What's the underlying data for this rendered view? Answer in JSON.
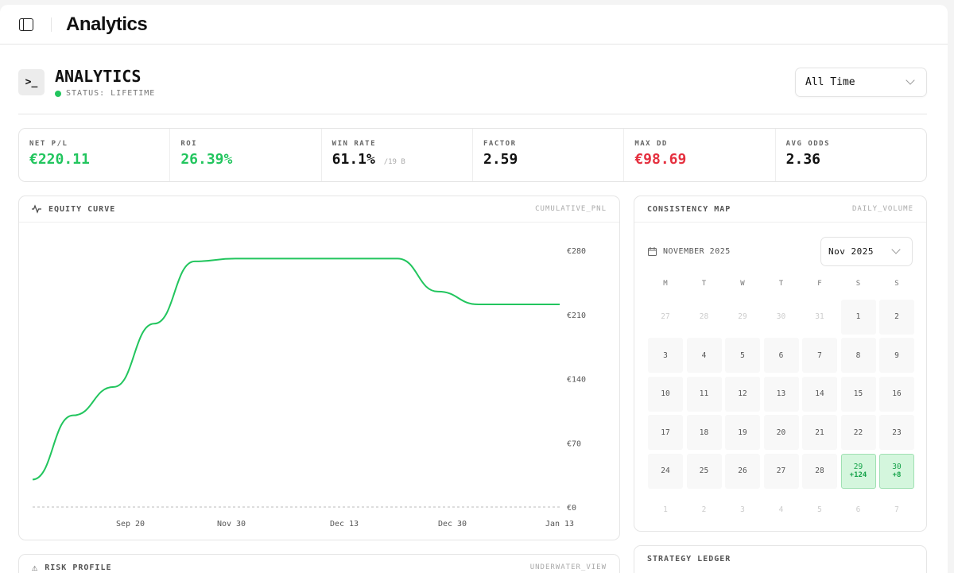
{
  "topbar": {
    "title": "Analytics"
  },
  "header": {
    "title": "ANALYTICS",
    "status": "STATUS: LIFETIME",
    "range_select": "All Time"
  },
  "stats": [
    {
      "label": "NET P/L",
      "value": "€220.11",
      "tone": "green"
    },
    {
      "label": "ROI",
      "value": "26.39%",
      "tone": "green"
    },
    {
      "label": "WIN RATE",
      "value": "61.1%",
      "sub": "/19 B",
      "tone": ""
    },
    {
      "label": "FACTOR",
      "value": "2.59",
      "tone": ""
    },
    {
      "label": "MAX DD",
      "value": "€98.69",
      "tone": "red"
    },
    {
      "label": "AVG ODDS",
      "value": "2.36",
      "tone": ""
    }
  ],
  "equity": {
    "title": "EQUITY CURVE",
    "tag": "CUMULATIVE_PNL"
  },
  "chart_data": {
    "type": "line",
    "color": "#22c55e",
    "y_ticks": [
      "€280",
      "€210",
      "€140",
      "€70",
      "€0"
    ],
    "ylim": [
      0,
      280
    ],
    "x_ticks": [
      "Sep 20",
      "Nov 30",
      "Dec 13",
      "Dec 30",
      "Jan 13"
    ],
    "values": [
      30,
      100,
      131,
      200,
      268,
      271,
      271,
      271,
      271,
      271,
      235,
      221,
      221,
      221
    ],
    "grid": false
  },
  "calendar": {
    "title": "CONSISTENCY MAP",
    "tag": "DAILY_VOLUME",
    "month_label": "NOVEMBER 2025",
    "select": "Nov 2025",
    "weekdays": [
      "M",
      "T",
      "W",
      "T",
      "F",
      "S",
      "S"
    ],
    "days": [
      {
        "d": "27",
        "m": 1
      },
      {
        "d": "28",
        "m": 1
      },
      {
        "d": "29",
        "m": 1
      },
      {
        "d": "30",
        "m": 1
      },
      {
        "d": "31",
        "m": 1
      },
      {
        "d": "1"
      },
      {
        "d": "2"
      },
      {
        "d": "3"
      },
      {
        "d": "4"
      },
      {
        "d": "5"
      },
      {
        "d": "6"
      },
      {
        "d": "7"
      },
      {
        "d": "8"
      },
      {
        "d": "9"
      },
      {
        "d": "10"
      },
      {
        "d": "11"
      },
      {
        "d": "12"
      },
      {
        "d": "13"
      },
      {
        "d": "14"
      },
      {
        "d": "15"
      },
      {
        "d": "16"
      },
      {
        "d": "17"
      },
      {
        "d": "18"
      },
      {
        "d": "19"
      },
      {
        "d": "20"
      },
      {
        "d": "21"
      },
      {
        "d": "22"
      },
      {
        "d": "23"
      },
      {
        "d": "24"
      },
      {
        "d": "25"
      },
      {
        "d": "26"
      },
      {
        "d": "27"
      },
      {
        "d": "28"
      },
      {
        "d": "29",
        "pnl": "+124"
      },
      {
        "d": "30",
        "pnl": "+8"
      },
      {
        "d": "1",
        "m": 1
      },
      {
        "d": "2",
        "m": 1
      },
      {
        "d": "3",
        "m": 1
      },
      {
        "d": "4",
        "m": 1
      },
      {
        "d": "5",
        "m": 1
      },
      {
        "d": "6",
        "m": 1
      },
      {
        "d": "7",
        "m": 1
      }
    ]
  },
  "risk": {
    "title": "RISK PROFILE",
    "tag": "UNDERWATER_VIEW"
  },
  "ledger": {
    "title": "STRATEGY LEDGER"
  }
}
